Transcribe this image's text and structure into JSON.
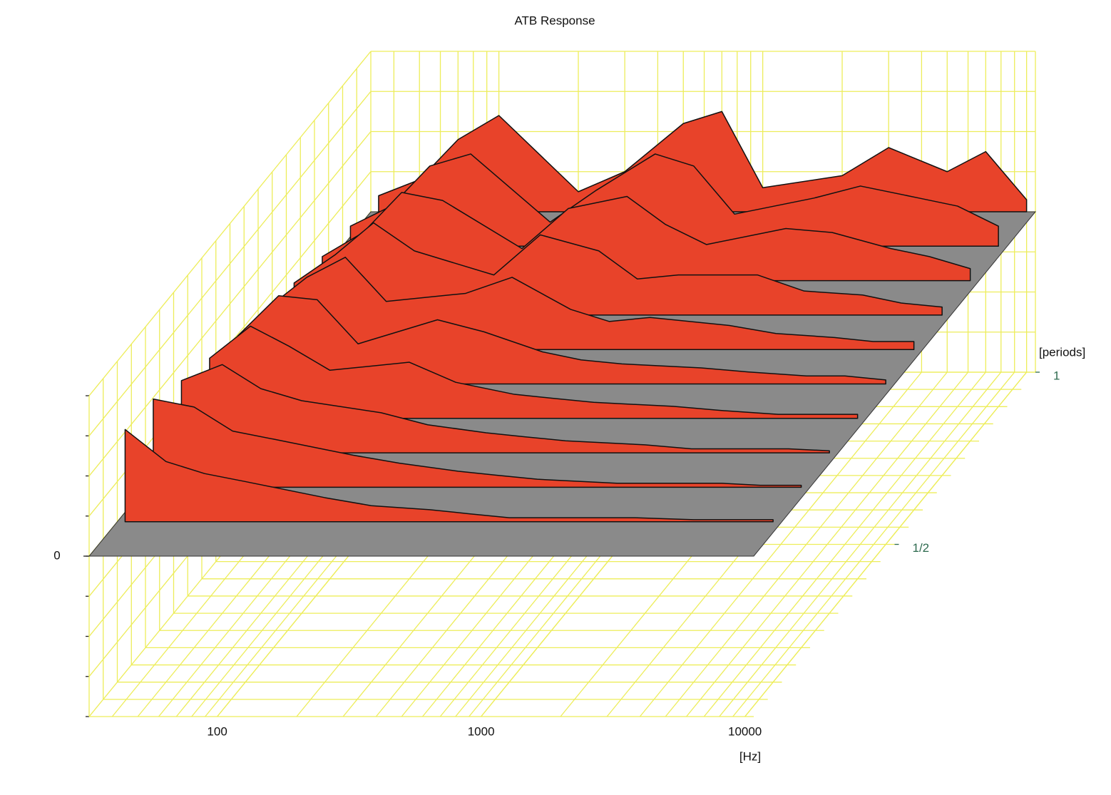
{
  "chart_data": {
    "type": "waterfall",
    "title": "ATB Response",
    "x_label": "[Hz]",
    "depth_label": "[periods]",
    "log_x": true,
    "xlim": [
      32.7,
      10800
    ],
    "xticks": [
      100,
      1000,
      10000
    ],
    "depthlim": [
      0,
      1
    ],
    "depthticks": [
      {
        "value": 0.5,
        "label": "1/2"
      },
      1
    ],
    "zlim": [
      -4,
      4
    ],
    "zticks": [
      0
    ],
    "color": "#e8432a",
    "grid_color": "#eded5a",
    "x": [
      35,
      50,
      70,
      100,
      200,
      300,
      500,
      700,
      1000,
      2000,
      3000,
      5000,
      7000,
      10000
    ],
    "slices": [
      {
        "period": 0.1,
        "values": [
          2.3,
          1.5,
          1.2,
          1.0,
          0.6,
          0.4,
          0.3,
          0.2,
          0.1,
          0.1,
          0.1,
          0.05,
          0.05,
          0.05
        ]
      },
      {
        "period": 0.2,
        "values": [
          2.2,
          2.0,
          1.4,
          1.2,
          0.8,
          0.6,
          0.4,
          0.3,
          0.2,
          0.1,
          0.1,
          0.1,
          0.05,
          0.05
        ]
      },
      {
        "period": 0.3,
        "values": [
          1.8,
          2.2,
          1.6,
          1.3,
          1.0,
          0.7,
          0.5,
          0.4,
          0.3,
          0.2,
          0.1,
          0.1,
          0.1,
          0.05
        ]
      },
      {
        "period": 0.4,
        "values": [
          1.5,
          2.3,
          1.8,
          1.2,
          1.4,
          0.9,
          0.6,
          0.5,
          0.4,
          0.3,
          0.2,
          0.1,
          0.1,
          0.1
        ]
      },
      {
        "period": 0.5,
        "values": [
          1.2,
          2.2,
          2.1,
          1.0,
          1.6,
          1.3,
          0.8,
          0.6,
          0.5,
          0.4,
          0.3,
          0.2,
          0.2,
          0.1
        ]
      },
      {
        "period": 0.6,
        "values": [
          1.0,
          1.8,
          2.3,
          1.2,
          1.4,
          1.8,
          1.0,
          0.7,
          0.8,
          0.6,
          0.4,
          0.3,
          0.2,
          0.2
        ]
      },
      {
        "period": 0.7,
        "values": [
          0.8,
          1.5,
          2.3,
          1.6,
          1.0,
          2.0,
          1.6,
          0.9,
          1.0,
          1.0,
          0.6,
          0.5,
          0.3,
          0.2
        ]
      },
      {
        "period": 0.8,
        "values": [
          0.6,
          1.2,
          2.2,
          2.0,
          0.8,
          1.8,
          2.1,
          1.4,
          0.9,
          1.3,
          1.2,
          0.8,
          0.6,
          0.3
        ]
      },
      {
        "period": 0.9,
        "values": [
          0.5,
          1.0,
          2.0,
          2.3,
          0.6,
          1.4,
          2.3,
          2.0,
          0.8,
          1.2,
          1.5,
          1.2,
          1.0,
          0.5
        ]
      },
      {
        "period": 1.0,
        "values": [
          0.4,
          0.8,
          1.8,
          2.4,
          0.5,
          1.0,
          2.2,
          2.5,
          0.6,
          0.9,
          1.6,
          1.0,
          1.5,
          0.3
        ]
      }
    ]
  }
}
